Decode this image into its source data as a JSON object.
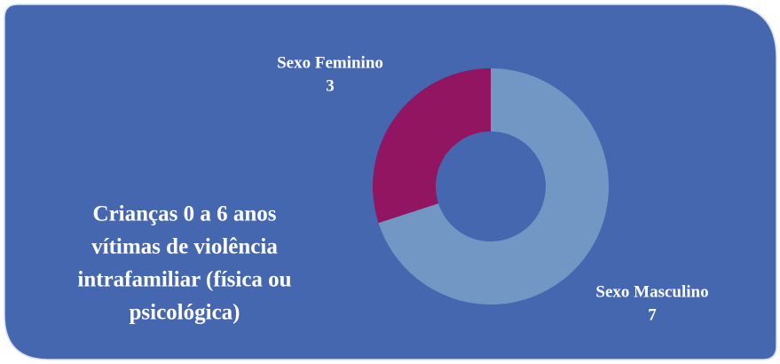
{
  "chart_data": {
    "type": "donut",
    "title": [
      "Crianças 0 a 6 anos",
      "vítimas de violência",
      "intrafamiliar (física ou",
      "psicológica)"
    ],
    "categories": [
      "Sexo Masculino",
      "Sexo Feminino"
    ],
    "values": [
      7,
      3
    ],
    "colors": [
      "#7397c5",
      "#921562"
    ]
  }
}
